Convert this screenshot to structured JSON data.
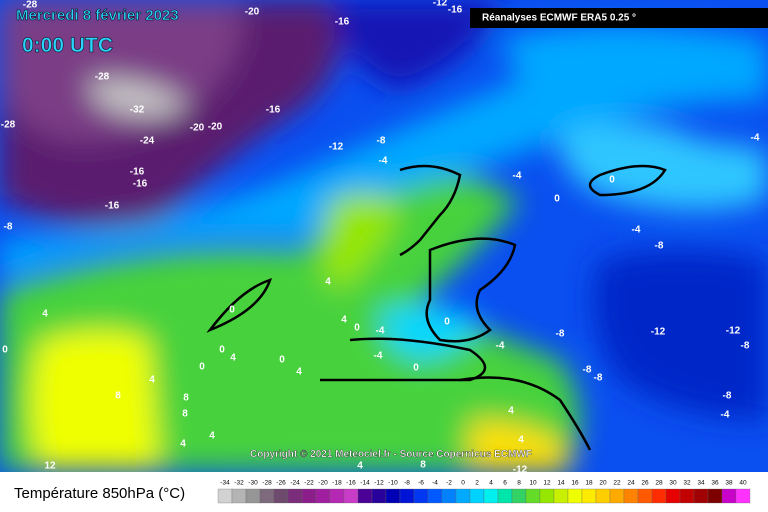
{
  "header": {
    "date": "Mercredi 8 février 2023",
    "time": "0:00 UTC",
    "source": "Réanalyses ECMWF ERA5 0.25 °"
  },
  "copyright": "Copyright © 2021 Meteociel.fr - Source Copernicus ECMWF",
  "legend": {
    "title": "Température 850hPa (°C)",
    "labels": [
      -34,
      -32,
      -30,
      -28,
      -26,
      -24,
      -22,
      -20,
      -18,
      -16,
      -14,
      -12,
      -10,
      -8,
      -6,
      -4,
      -2,
      0,
      2,
      4,
      6,
      8,
      10,
      12,
      14,
      16,
      18,
      20,
      22,
      24,
      26,
      28,
      30,
      32,
      34,
      36,
      38,
      40
    ],
    "colors": [
      "#d2d2d2",
      "#b4b4b4",
      "#969696",
      "#7d6a7d",
      "#6e4a6e",
      "#7a2d7a",
      "#8c1e8c",
      "#a01ea0",
      "#b428b4",
      "#c83cc8",
      "#4b0096",
      "#28009b",
      "#0000b4",
      "#0014d7",
      "#0037f0",
      "#005aff",
      "#0082ff",
      "#00aaff",
      "#00d2ff",
      "#00f0f0",
      "#00e6aa",
      "#32d264",
      "#64dc28",
      "#96e600",
      "#c8f000",
      "#f0ff00",
      "#ffeb00",
      "#ffcd00",
      "#ffaa00",
      "#ff8200",
      "#ff5a00",
      "#ff2d00",
      "#e60000",
      "#c30000",
      "#a00000",
      "#7d0000",
      "#c800c8",
      "#ff32ff"
    ]
  },
  "map_labels": [
    "-28",
    "-20",
    "-12",
    "-16",
    "-16",
    "-28",
    "-32",
    "-28",
    "-16",
    "-20",
    "-20",
    "-24",
    "-8",
    "-12",
    "-4",
    "-16",
    "-16",
    "-16",
    "-8",
    "-4",
    "0",
    "0",
    "-4",
    "-4",
    "-8",
    "4",
    "0",
    "4",
    "4",
    "0",
    "-4",
    "0",
    "-4",
    "0",
    "4",
    "0",
    "0",
    "0",
    "4",
    "-4",
    "-8",
    "-12",
    "-12",
    "-8",
    "-8",
    "-8",
    "8",
    "4",
    "8",
    "8",
    "4",
    "4",
    "-8",
    "-4",
    "4",
    "4",
    "4",
    "8",
    "-12",
    "12",
    "0"
  ]
}
